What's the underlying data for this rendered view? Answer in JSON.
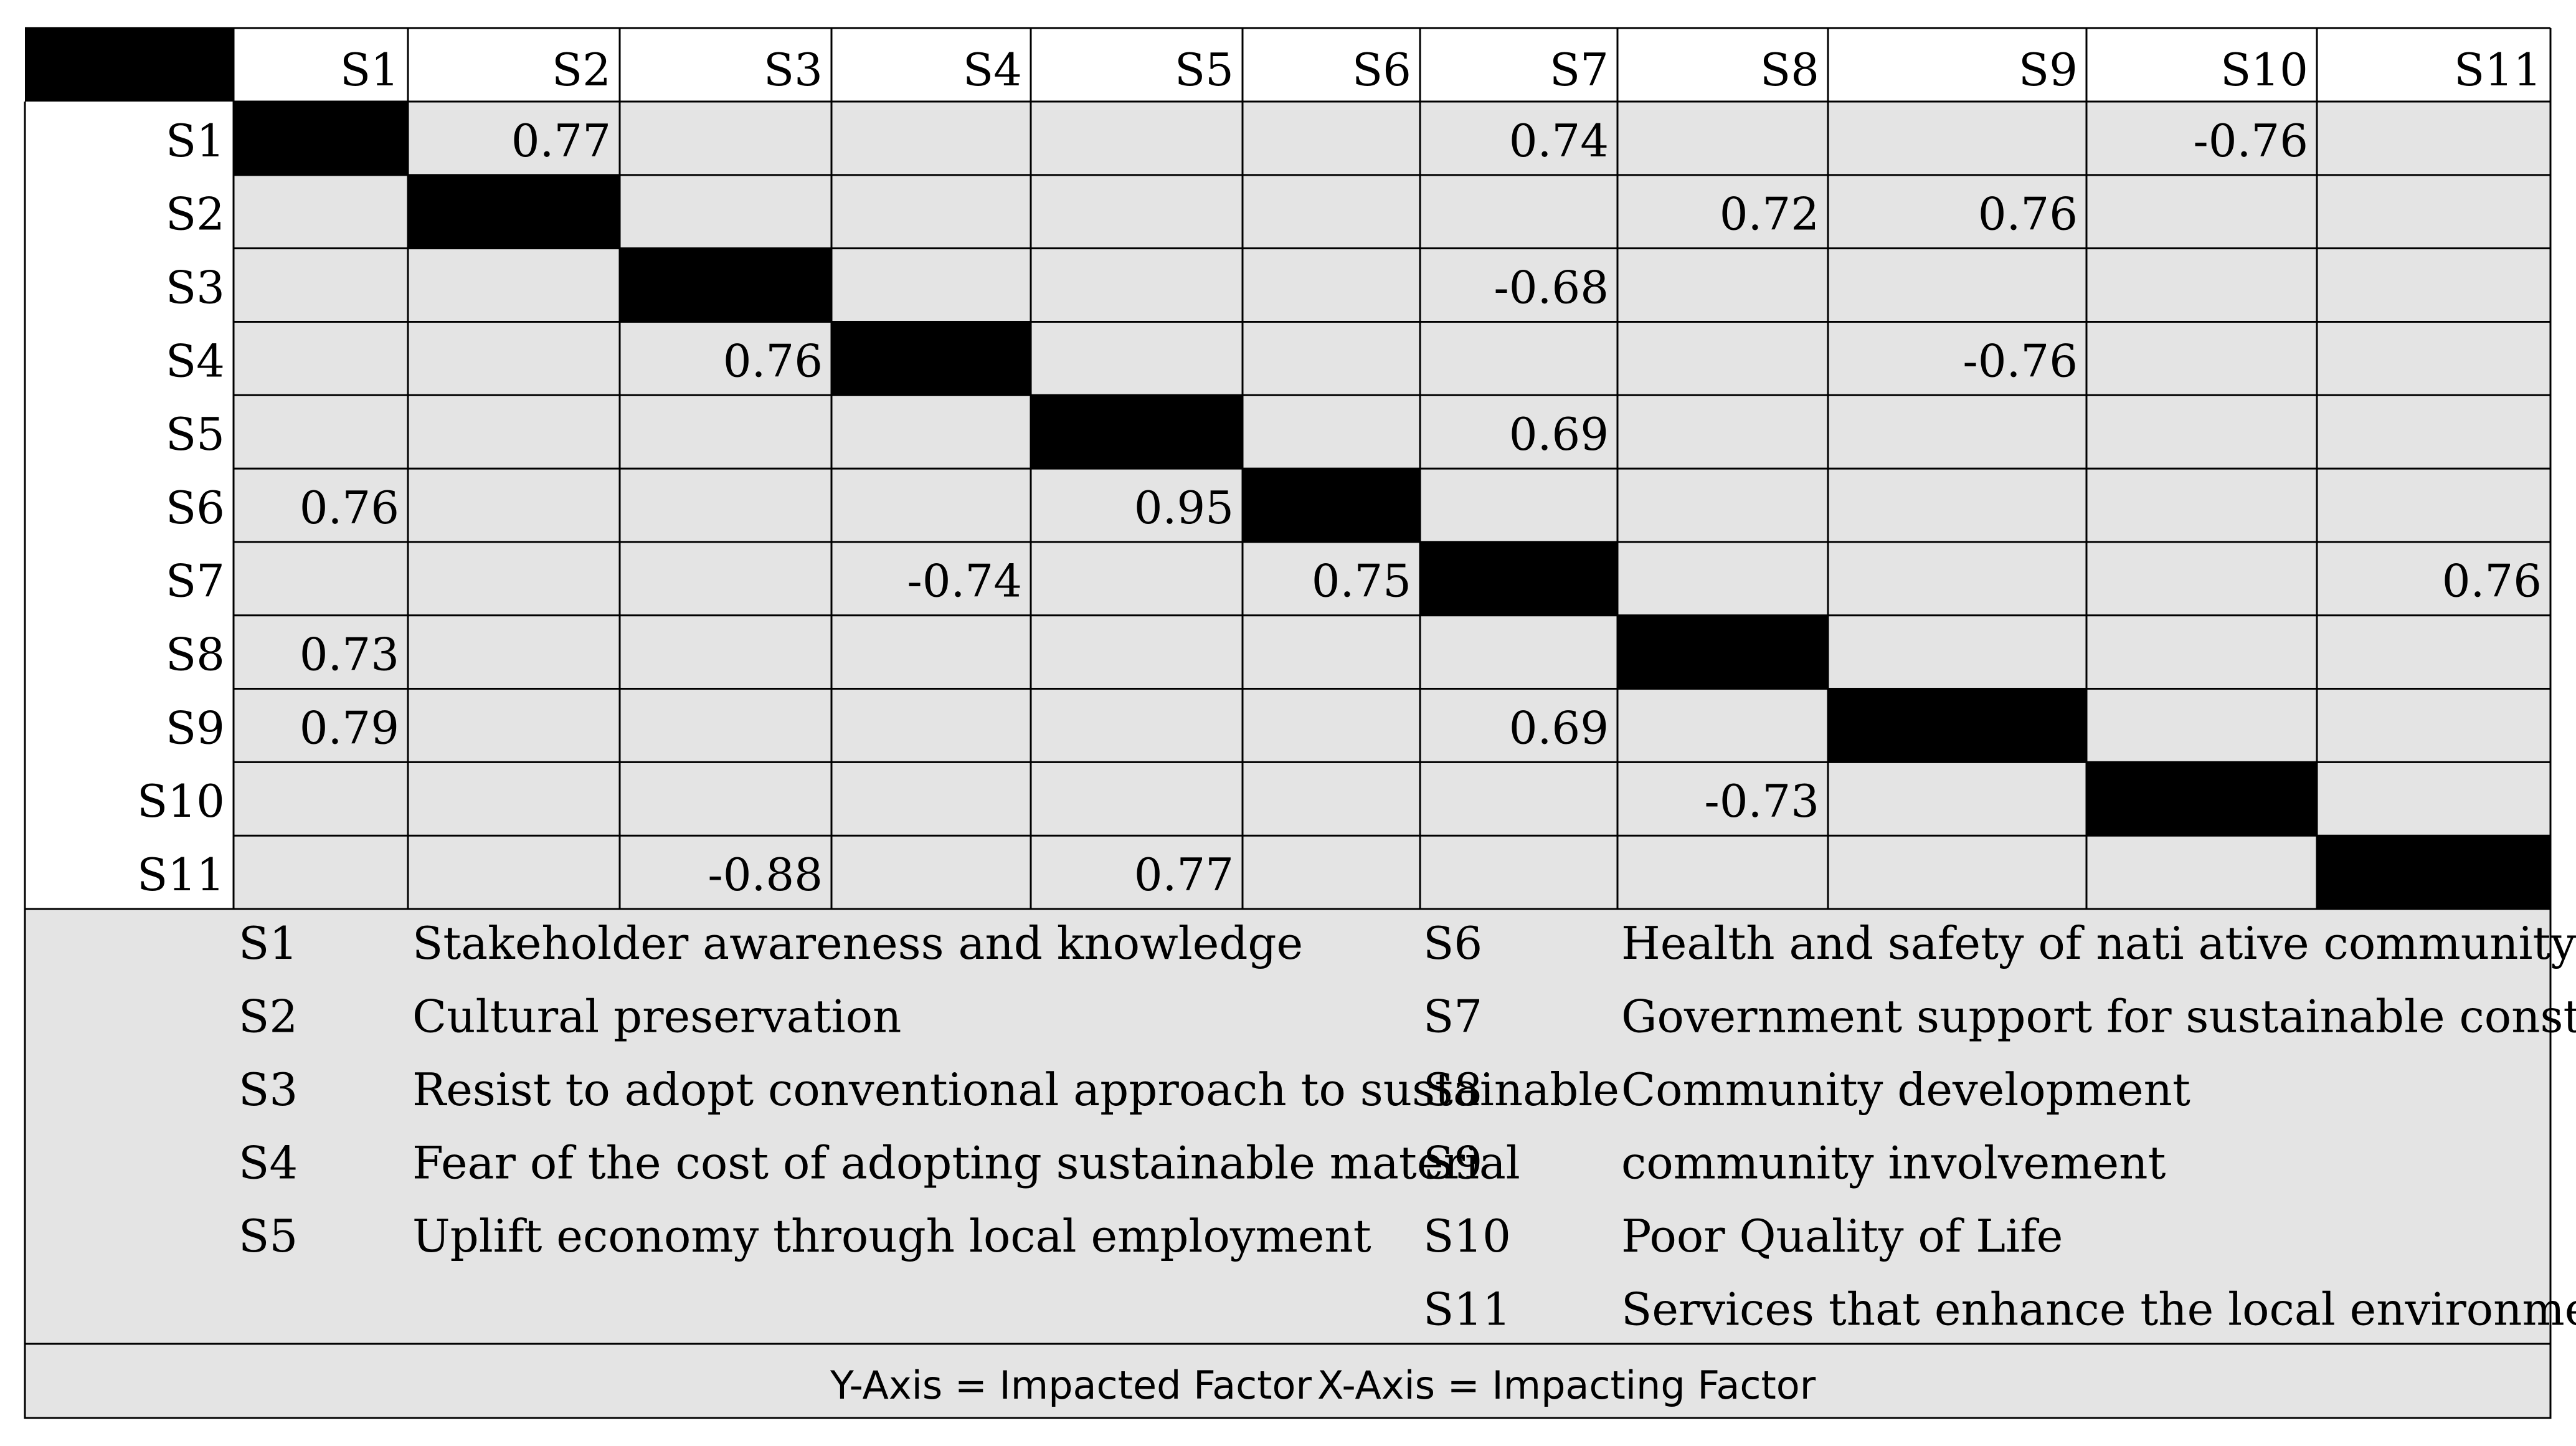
{
  "chart_data": {
    "type": "table",
    "columns": [
      "S1",
      "S2",
      "S3",
      "S4",
      "S5",
      "S6",
      "S7",
      "S8",
      "S9",
      "S10",
      "S11"
    ],
    "rows": [
      "S1",
      "S2",
      "S3",
      "S4",
      "S5",
      "S6",
      "S7",
      "S8",
      "S9",
      "S10",
      "S11"
    ],
    "values": [
      [
        "",
        "0.77",
        "",
        "",
        "",
        "",
        "0.74",
        "",
        "",
        "-0.76",
        ""
      ],
      [
        "",
        "",
        "",
        "",
        "",
        "",
        "",
        "0.72",
        "0.76",
        "",
        ""
      ],
      [
        "",
        "",
        "",
        "",
        "",
        "",
        "-0.68",
        "",
        "",
        "",
        ""
      ],
      [
        "",
        "",
        "0.76",
        "",
        "",
        "",
        "",
        "",
        "-0.76",
        "",
        ""
      ],
      [
        "",
        "",
        "",
        "",
        "",
        "",
        "0.69",
        "",
        "",
        "",
        ""
      ],
      [
        "0.76",
        "",
        "",
        "",
        "0.95",
        "",
        "",
        "",
        "",
        "",
        ""
      ],
      [
        "",
        "",
        "",
        "-0.74",
        "",
        "0.75",
        "",
        "",
        "",
        "",
        "0.76"
      ],
      [
        "0.73",
        "",
        "",
        "",
        "",
        "",
        "",
        "",
        "",
        "",
        ""
      ],
      [
        "0.79",
        "",
        "",
        "",
        "",
        "",
        "0.69",
        "",
        "",
        "",
        ""
      ],
      [
        "",
        "",
        "",
        "",
        "",
        "",
        "",
        "-0.73",
        "",
        "",
        ""
      ],
      [
        "",
        "",
        "-0.88",
        "",
        "0.77",
        "",
        "",
        "",
        "",
        "",
        ""
      ]
    ],
    "diagonal": "black",
    "legend": [
      {
        "code": "S1",
        "label": "Stakeholder awareness and knowledge"
      },
      {
        "code": "S2",
        "label": "Cultural preservation"
      },
      {
        "code": "S3",
        "label": "Resist to adopt conventional approach to sustainable"
      },
      {
        "code": "S4",
        "label": "Fear of the cost of adopting sustainable material"
      },
      {
        "code": "S5",
        "label": "Uplift economy through local employment"
      },
      {
        "code": "S6",
        "label": "Health and safety of nati ative community"
      },
      {
        "code": "S7",
        "label": "Government support for sustainable construction"
      },
      {
        "code": "S8",
        "label": "Community development"
      },
      {
        "code": "S9",
        "label": "community involvement"
      },
      {
        "code": "S10",
        "label": "Poor Quality of Life"
      },
      {
        "code": "S11",
        "label": "Services that enhance the local environment"
      }
    ],
    "footer": {
      "y_axis": "Y-Axis = Impacted Factor",
      "x_axis": "X-Axis = Impacting Factor"
    }
  },
  "colors": {
    "cell_bg": "#e4e4e4",
    "header_bg": "#ffffff",
    "diagonal": "#000000",
    "grid": "#000000"
  }
}
